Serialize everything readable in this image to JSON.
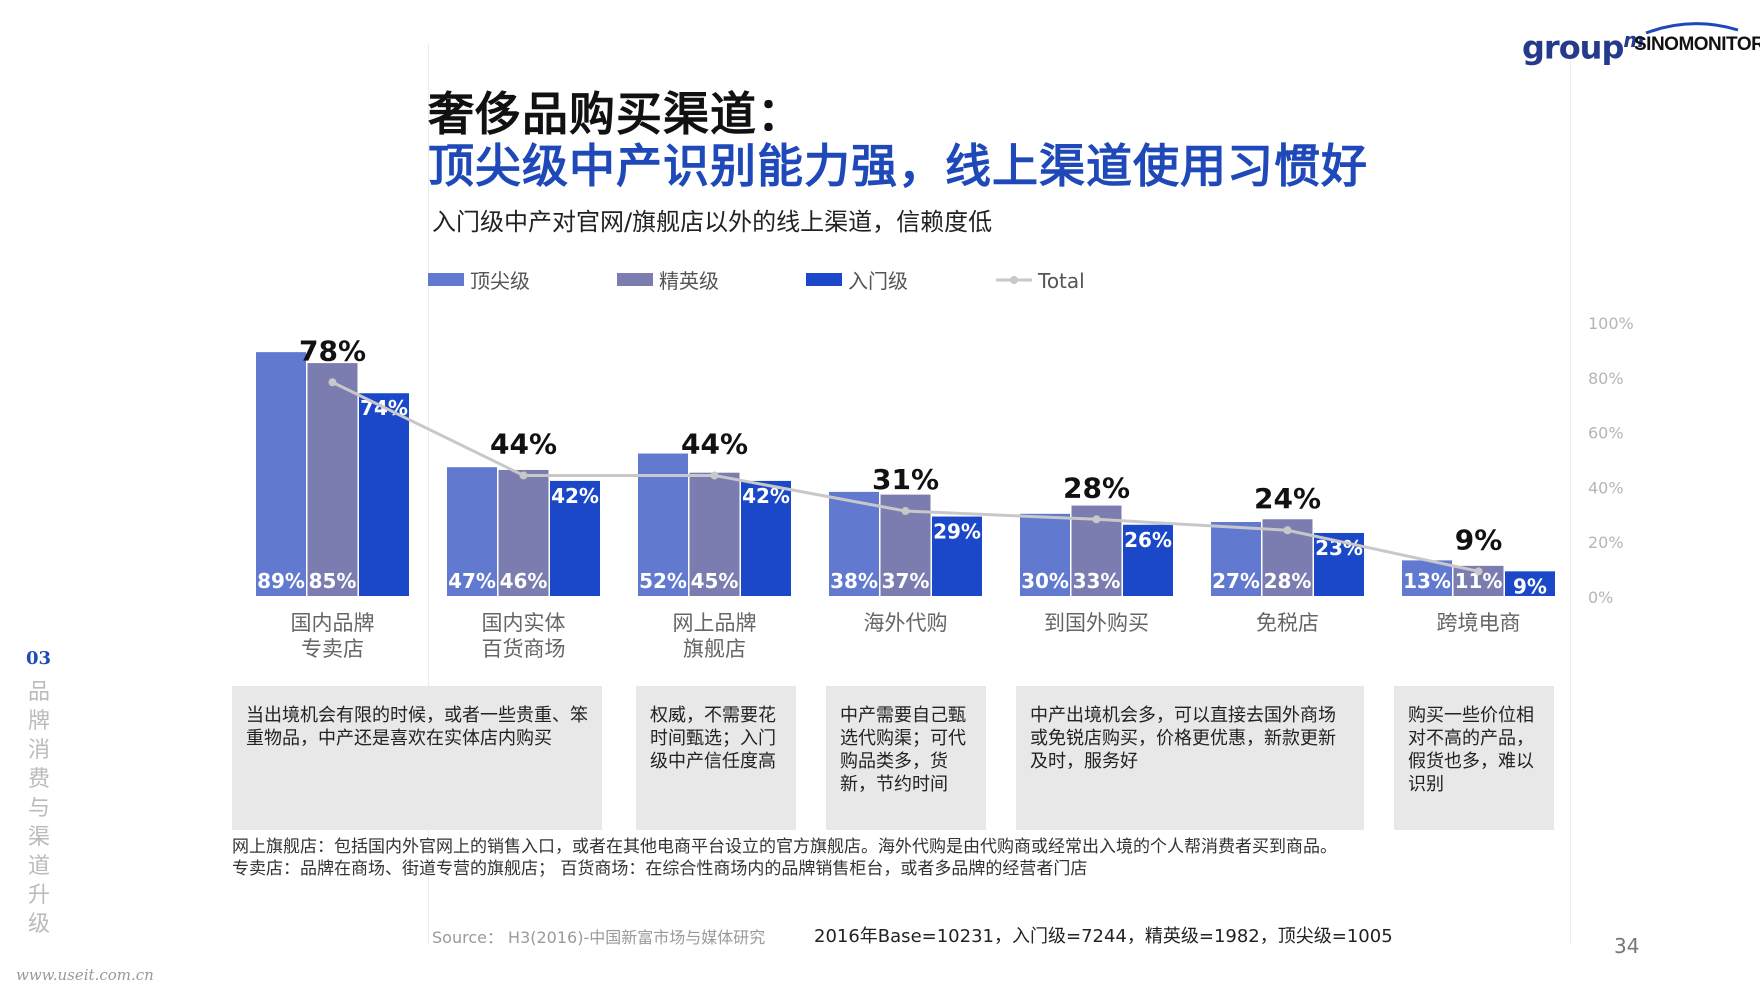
{
  "header": {
    "title_line1": "奢侈品购买渠道：",
    "title_line2": "顶尖级中产识别能力强，线上渠道使用习惯好",
    "subtitle": "入门级中产对官网/旗舰店以外的线上渠道，信赖度低"
  },
  "logos": {
    "group_main": "group",
    "group_sup": "m",
    "sinomonitor": "SINOMONITOR"
  },
  "sidebar": {
    "section_number": "03",
    "section_label": "品牌消费与渠道升级"
  },
  "colors": {
    "top": "#6179cf",
    "elite": "#7b7cb0",
    "entry": "#1a48c9",
    "total": "#c8c8c8",
    "title_blue": "#1f49b8"
  },
  "chart_data": {
    "type": "bar",
    "categories": [
      "国内品牌\n专卖店",
      "国内实体\n百货商场",
      "网上品牌\n旗舰店",
      "海外代购",
      "到国外购买",
      "免税店",
      "跨境电商"
    ],
    "series": [
      {
        "name": "顶尖级",
        "type": "bar",
        "values": [
          89,
          47,
          52,
          38,
          30,
          27,
          13
        ],
        "labels": [
          "89%",
          "47%",
          "52%",
          "38%",
          "30%",
          "27%",
          "13%"
        ]
      },
      {
        "name": "精英级",
        "type": "bar",
        "values": [
          85,
          46,
          45,
          37,
          33,
          28,
          11
        ],
        "labels": [
          "85%",
          "46%",
          "45%",
          "37%",
          "33%",
          "28%",
          "11%"
        ]
      },
      {
        "name": "入门级",
        "type": "bar",
        "values": [
          74,
          42,
          42,
          29,
          26,
          23,
          9
        ],
        "labels": [
          "74%",
          "42%",
          "42%",
          "29%",
          "26%",
          "23%",
          "9%"
        ]
      },
      {
        "name": "Total",
        "type": "line",
        "values": [
          78,
          44,
          44,
          31,
          28,
          24,
          9
        ],
        "labels": [
          "78%",
          "44%",
          "44%",
          "31%",
          "28%",
          "24%",
          "9%"
        ]
      }
    ],
    "y_ticks": [
      "100%",
      "80%",
      "60%",
      "40%",
      "20%",
      "0%"
    ],
    "ylim": [
      0,
      100
    ],
    "legend_position": "top-left",
    "grid": false
  },
  "explanations": [
    "当出境机会有限的时候，或者一些贵重、笨重物品，中产还是喜欢在实体店内购买",
    "权威，不需要花时间甄选；入门级中产信任度高",
    "中产需要自己甄选代购渠；可代购品类多，货新，节约时间",
    "中产出境机会多，可以直接去国外商场或免锐店购买，价格更优惠，新款更新及时，服务好",
    "购买一些价位相对不高的产品，假货也多，难以识别"
  ],
  "notes": {
    "line1": "网上旗舰店：包括国内外官网上的销售入口，或者在其他电商平台设立的官方旗舰店。海外代购是由代购商或经常出入境的个人帮消费者买到商品。",
    "line2": "专卖店：品牌在商场、街道专营的旗舰店；  百货商场：在综合性商场内的品牌销售柜台，或者多品牌的经营者门店"
  },
  "footer": {
    "source": "Source： H3(2016)-中国新富市场与媒体研究",
    "base": "2016年Base=10231，入门级=7244，精英级=1982，顶尖级=1005",
    "page_number": "34",
    "watermark": "www.useit.com.cn"
  }
}
